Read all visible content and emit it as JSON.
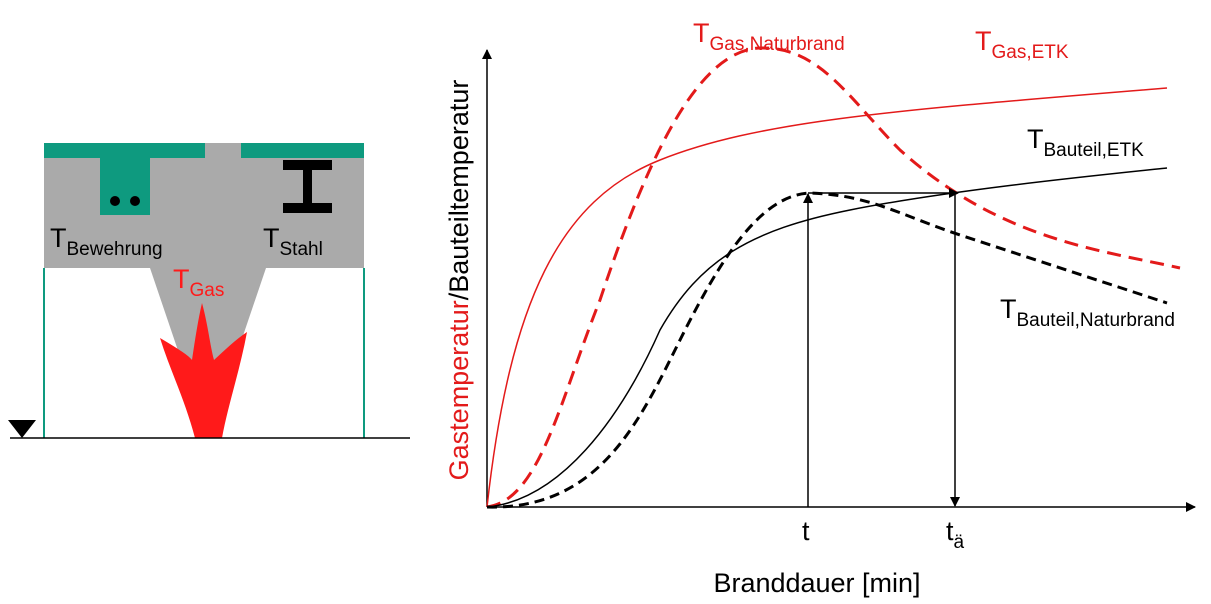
{
  "left_diagram": {
    "labels": [
      {
        "main": "T",
        "sub": "Bewehrung"
      },
      {
        "main": "T",
        "sub": "Stahl"
      },
      {
        "main": "T",
        "sub": "Gas"
      }
    ]
  },
  "chart": {
    "x_label": "Branddauer [min]",
    "y_label_parts": [
      "Gastemperatur",
      "/Bauteiltemperatur"
    ],
    "curve_labels": [
      {
        "main": "T",
        "sub": "Gas,Naturbrand"
      },
      {
        "main": "T",
        "sub": "Gas,ETK"
      },
      {
        "main": "T",
        "sub": "Bauteil,ETK"
      },
      {
        "main": "T",
        "sub": "Bauteil,Naturbrand"
      }
    ],
    "x_markers": [
      {
        "main": "t"
      },
      {
        "main": "t",
        "sub": "ä"
      }
    ]
  }
}
